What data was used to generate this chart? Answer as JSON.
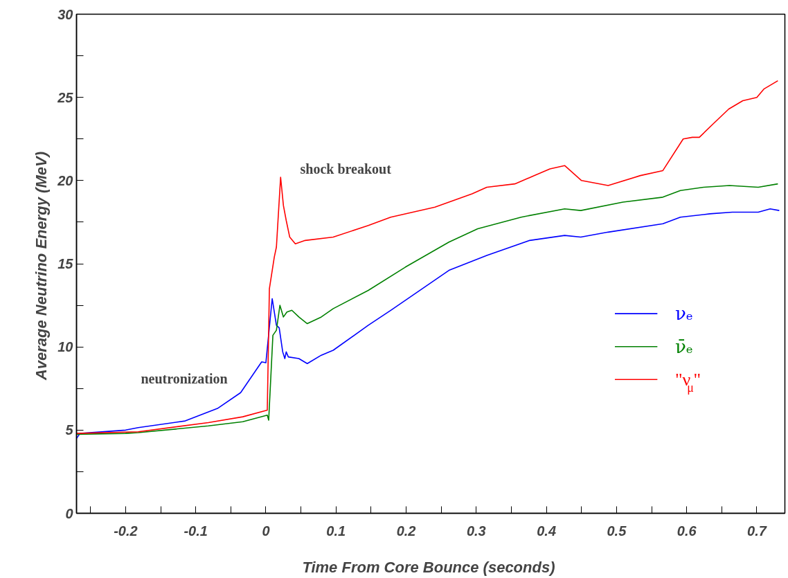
{
  "chart_data": {
    "type": "line",
    "xlabel": "Time From Core Bounce  (seconds)",
    "ylabel": "Average Neutrino Energy  (MeV)",
    "xlim": [
      -0.27,
      0.74
    ],
    "ylim": [
      0,
      30
    ],
    "xticks": [
      {
        "value": -0.25,
        "label": null
      },
      -0.2,
      {
        "value": -0.15,
        "label": null
      },
      -0.1,
      {
        "value": -0.05,
        "label": null
      },
      0,
      {
        "value": 0.05,
        "label": null
      },
      0.1,
      {
        "value": 0.15,
        "label": null
      },
      0.2,
      {
        "value": 0.25,
        "label": null
      },
      0.3,
      {
        "value": 0.35,
        "label": null
      },
      0.4,
      {
        "value": 0.45,
        "label": null
      },
      0.5,
      {
        "value": 0.55,
        "label": null
      },
      0.6,
      {
        "value": 0.65,
        "label": null
      },
      0.7
    ],
    "yticks": [
      0,
      {
        "value": 2.5,
        "label": null
      },
      5,
      {
        "value": 7.5,
        "label": null
      },
      10,
      {
        "value": 12.5,
        "label": null
      },
      15,
      {
        "value": 17.5,
        "label": null
      },
      20,
      {
        "value": 22.5,
        "label": null
      },
      25,
      {
        "value": 27.5,
        "label": null
      },
      30
    ],
    "grid": false,
    "legend": "right",
    "marker": "none",
    "line_style": "solid",
    "annotations": [
      "shock breakout",
      "neutronization"
    ],
    "series": [
      {
        "name": "νₑ",
        "color": "#0000ff",
        "x": [
          -0.27,
          -0.265,
          -0.2,
          -0.182,
          -0.115,
          -0.069,
          -0.036,
          -0.006,
          0.0,
          0.009,
          0.015,
          0.019,
          0.024,
          0.027,
          0.029,
          0.032,
          0.047,
          0.059,
          0.079,
          0.096,
          0.146,
          0.178,
          0.261,
          0.315,
          0.376,
          0.426,
          0.449,
          0.488,
          0.566,
          0.591,
          0.633,
          0.665,
          0.702,
          0.719,
          0.732
        ],
        "values": [
          4.5,
          4.8,
          5.0,
          5.15,
          5.55,
          6.3,
          7.25,
          9.1,
          9.05,
          12.9,
          11.3,
          11.15,
          9.7,
          9.3,
          9.7,
          9.4,
          9.3,
          9.0,
          9.5,
          9.8,
          11.3,
          12.2,
          14.6,
          15.5,
          16.4,
          16.7,
          16.6,
          16.9,
          17.4,
          17.8,
          18.0,
          18.1,
          18.1,
          18.3,
          18.2
        ]
      },
      {
        "name": "ν̄ₑ",
        "color": "#008000",
        "x": [
          -0.27,
          -0.2,
          -0.182,
          -0.082,
          -0.033,
          0.002,
          0.004,
          0.01,
          0.015,
          0.02,
          0.025,
          0.03,
          0.037,
          0.047,
          0.059,
          0.079,
          0.096,
          0.146,
          0.199,
          0.261,
          0.302,
          0.364,
          0.426,
          0.449,
          0.509,
          0.566,
          0.591,
          0.624,
          0.661,
          0.702,
          0.73
        ],
        "values": [
          4.75,
          4.8,
          4.85,
          5.25,
          5.5,
          5.9,
          5.6,
          10.7,
          11.0,
          12.5,
          11.8,
          12.1,
          12.2,
          11.8,
          11.4,
          11.8,
          12.3,
          13.4,
          14.8,
          16.3,
          17.1,
          17.8,
          18.3,
          18.2,
          18.7,
          19.0,
          19.4,
          19.6,
          19.7,
          19.6,
          19.8
        ]
      },
      {
        "name": "\"ν$_{μ}$\"",
        "color": "#ff0000",
        "x": [
          -0.27,
          -0.182,
          -0.082,
          -0.033,
          0.002,
          0.005,
          0.012,
          0.015,
          0.021,
          0.025,
          0.029,
          0.034,
          0.042,
          0.056,
          0.096,
          0.146,
          0.178,
          0.241,
          0.294,
          0.315,
          0.355,
          0.405,
          0.426,
          0.45,
          0.488,
          0.534,
          0.566,
          0.595,
          0.608,
          0.618,
          0.64,
          0.66,
          0.68,
          0.7,
          0.71,
          0.73
        ],
        "values": [
          4.8,
          4.9,
          5.45,
          5.8,
          6.2,
          13.5,
          15.4,
          16.0,
          20.2,
          18.5,
          17.6,
          16.6,
          16.2,
          16.4,
          16.6,
          17.3,
          17.8,
          18.4,
          19.2,
          19.6,
          19.8,
          20.7,
          20.9,
          20.0,
          19.7,
          20.3,
          20.6,
          22.5,
          22.6,
          22.6,
          23.5,
          24.3,
          24.8,
          25.0,
          25.5,
          26.0
        ]
      }
    ]
  }
}
